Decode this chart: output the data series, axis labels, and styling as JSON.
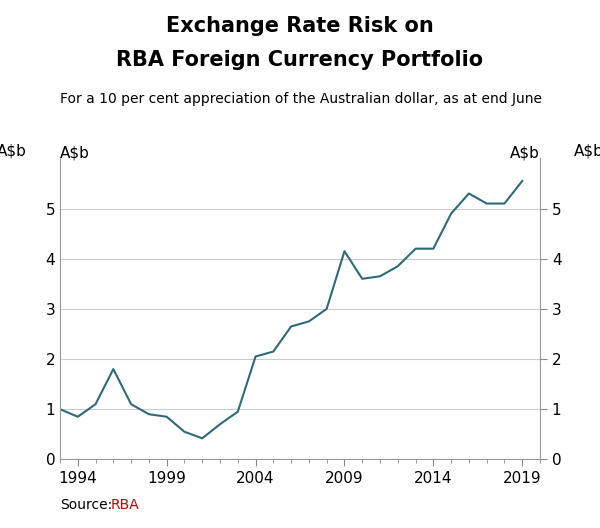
{
  "title_line1": "Exchange Rate Risk on",
  "title_line2": "RBA Foreign Currency Portfolio",
  "subtitle": "For a 10 per cent appreciation of the Australian dollar, as at end June",
  "ylabel_left": "A$b",
  "ylabel_right": "A$b",
  "source_label": "Source:",
  "source_value": "RBA",
  "xlim": [
    1993,
    2020
  ],
  "ylim": [
    0,
    6
  ],
  "yticks": [
    0,
    1,
    2,
    3,
    4,
    5
  ],
  "xticks": [
    1994,
    1999,
    2004,
    2009,
    2014,
    2019
  ],
  "line_color": "#2e6b7a",
  "line_width": 1.5,
  "years": [
    1993,
    1994,
    1995,
    1996,
    1997,
    1998,
    1999,
    2000,
    2001,
    2002,
    2003,
    2004,
    2005,
    2006,
    2007,
    2008,
    2009,
    2010,
    2011,
    2012,
    2013,
    2014,
    2015,
    2016,
    2017,
    2018,
    2019
  ],
  "values": [
    1.0,
    0.85,
    1.1,
    1.8,
    1.1,
    0.9,
    0.85,
    0.55,
    0.42,
    0.7,
    0.95,
    2.05,
    2.15,
    2.65,
    2.75,
    3.0,
    4.15,
    3.6,
    3.65,
    3.85,
    4.2,
    4.2,
    4.9,
    5.3,
    5.1,
    5.1,
    5.55
  ],
  "background_color": "#ffffff",
  "grid_color": "#cccccc",
  "title_fontsize": 15,
  "subtitle_fontsize": 10,
  "tick_fontsize": 11,
  "label_fontsize": 11,
  "source_fontsize": 10
}
